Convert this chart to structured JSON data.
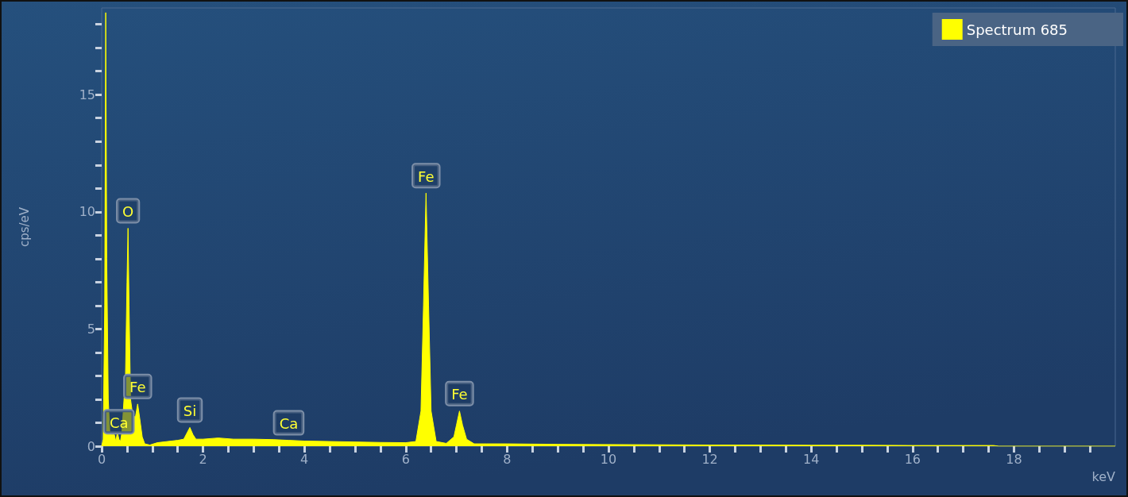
{
  "chart_data": {
    "type": "area",
    "xlabel": "keV",
    "ylabel": "cps/eV",
    "xlim": [
      0,
      20
    ],
    "ylim": [
      0,
      18.7
    ],
    "xticks": [
      0,
      {
        "value": 0.5,
        "label": null
      },
      {
        "value": 1,
        "label": null
      },
      {
        "value": 1.5,
        "label": null
      },
      2,
      {
        "value": 2.5,
        "label": null
      },
      {
        "value": 3,
        "label": null
      },
      {
        "value": 3.5,
        "label": null
      },
      4,
      {
        "value": 4.5,
        "label": null
      },
      {
        "value": 5,
        "label": null
      },
      {
        "value": 5.5,
        "label": null
      },
      6,
      {
        "value": 6.5,
        "label": null
      },
      {
        "value": 7,
        "label": null
      },
      {
        "value": 7.5,
        "label": null
      },
      8,
      {
        "value": 8.5,
        "label": null
      },
      {
        "value": 9,
        "label": null
      },
      {
        "value": 9.5,
        "label": null
      },
      10,
      {
        "value": 10.5,
        "label": null
      },
      {
        "value": 11,
        "label": null
      },
      {
        "value": 11.5,
        "label": null
      },
      12,
      {
        "value": 12.5,
        "label": null
      },
      {
        "value": 13,
        "label": null
      },
      {
        "value": 13.5,
        "label": null
      },
      14,
      {
        "value": 14.5,
        "label": null
      },
      {
        "value": 15,
        "label": null
      },
      {
        "value": 15.5,
        "label": null
      },
      16,
      {
        "value": 16.5,
        "label": null
      },
      {
        "value": 17,
        "label": null
      },
      {
        "value": 17.5,
        "label": null
      },
      18,
      {
        "value": 18.5,
        "label": null
      },
      {
        "value": 19,
        "label": null
      },
      {
        "value": 19.5,
        "label": null
      }
    ],
    "yticks": [
      0,
      {
        "value": 1,
        "label": null
      },
      {
        "value": 2,
        "label": null
      },
      {
        "value": 3,
        "label": null
      },
      {
        "value": 4,
        "label": null
      },
      5,
      {
        "value": 6,
        "label": null
      },
      {
        "value": 7,
        "label": null
      },
      {
        "value": 8,
        "label": null
      },
      {
        "value": 9,
        "label": null
      },
      10,
      {
        "value": 11,
        "label": null
      },
      {
        "value": 12,
        "label": null
      },
      {
        "value": 13,
        "label": null
      },
      {
        "value": 14,
        "label": null
      },
      15,
      {
        "value": 16,
        "label": null
      },
      {
        "value": 17,
        "label": null
      },
      {
        "value": 18,
        "label": null
      }
    ],
    "grid": false,
    "legend": "top right",
    "marker": "none",
    "series": [
      {
        "name": "Spectrum 685",
        "color": "#ffff00",
        "x": [
          0,
          0.03,
          0.06,
          0.08,
          0.1,
          0.13,
          0.16,
          0.2,
          0.25,
          0.28,
          0.31,
          0.34,
          0.37,
          0.4,
          0.47,
          0.5,
          0.52,
          0.54,
          0.57,
          0.62,
          0.67,
          0.71,
          0.75,
          0.8,
          0.85,
          0.95,
          1.1,
          1.3,
          1.5,
          1.62,
          1.68,
          1.74,
          1.8,
          1.86,
          2.0,
          2.3,
          2.6,
          3.0,
          3.4,
          3.69,
          4.0,
          4.5,
          5.0,
          5.5,
          6.0,
          6.2,
          6.3,
          6.35,
          6.4,
          6.45,
          6.5,
          6.6,
          6.8,
          6.95,
          7.0,
          7.06,
          7.12,
          7.2,
          7.35,
          7.6,
          8,
          9,
          10,
          11,
          12,
          13,
          14,
          15,
          16,
          17,
          17.6,
          17.7,
          20
        ],
        "values": [
          0,
          0.3,
          6,
          18.5,
          8,
          2,
          0.6,
          0.5,
          0.5,
          0.2,
          0.6,
          0.3,
          0.2,
          0.6,
          3,
          7,
          9.3,
          6,
          2,
          1.2,
          1.3,
          1.8,
          1.2,
          0.4,
          0.1,
          0.05,
          0.15,
          0.2,
          0.25,
          0.3,
          0.55,
          0.8,
          0.5,
          0.3,
          0.3,
          0.35,
          0.3,
          0.3,
          0.28,
          0.25,
          0.22,
          0.2,
          0.18,
          0.16,
          0.15,
          0.2,
          1.5,
          6,
          10.8,
          6,
          1.5,
          0.2,
          0.12,
          0.4,
          0.9,
          1.5,
          0.9,
          0.3,
          0.1,
          0.1,
          0.1,
          0.08,
          0.07,
          0.06,
          0.05,
          0.05,
          0.04,
          0.04,
          0.03,
          0.03,
          0.03,
          0,
          0
        ]
      }
    ],
    "annotations": [
      {
        "text": "Ca",
        "x": 0.34,
        "y": 0.3
      },
      {
        "text": "O",
        "x": 0.52,
        "y": 9.3
      },
      {
        "text": "Fe",
        "x": 0.71,
        "y": 1.8
      },
      {
        "text": "Si",
        "x": 1.74,
        "y": 0.8
      },
      {
        "text": "Ca",
        "x": 3.69,
        "y": 0.25
      },
      {
        "text": "Fe",
        "x": 6.4,
        "y": 10.8
      },
      {
        "text": "Fe",
        "x": 7.06,
        "y": 1.5
      }
    ]
  }
}
